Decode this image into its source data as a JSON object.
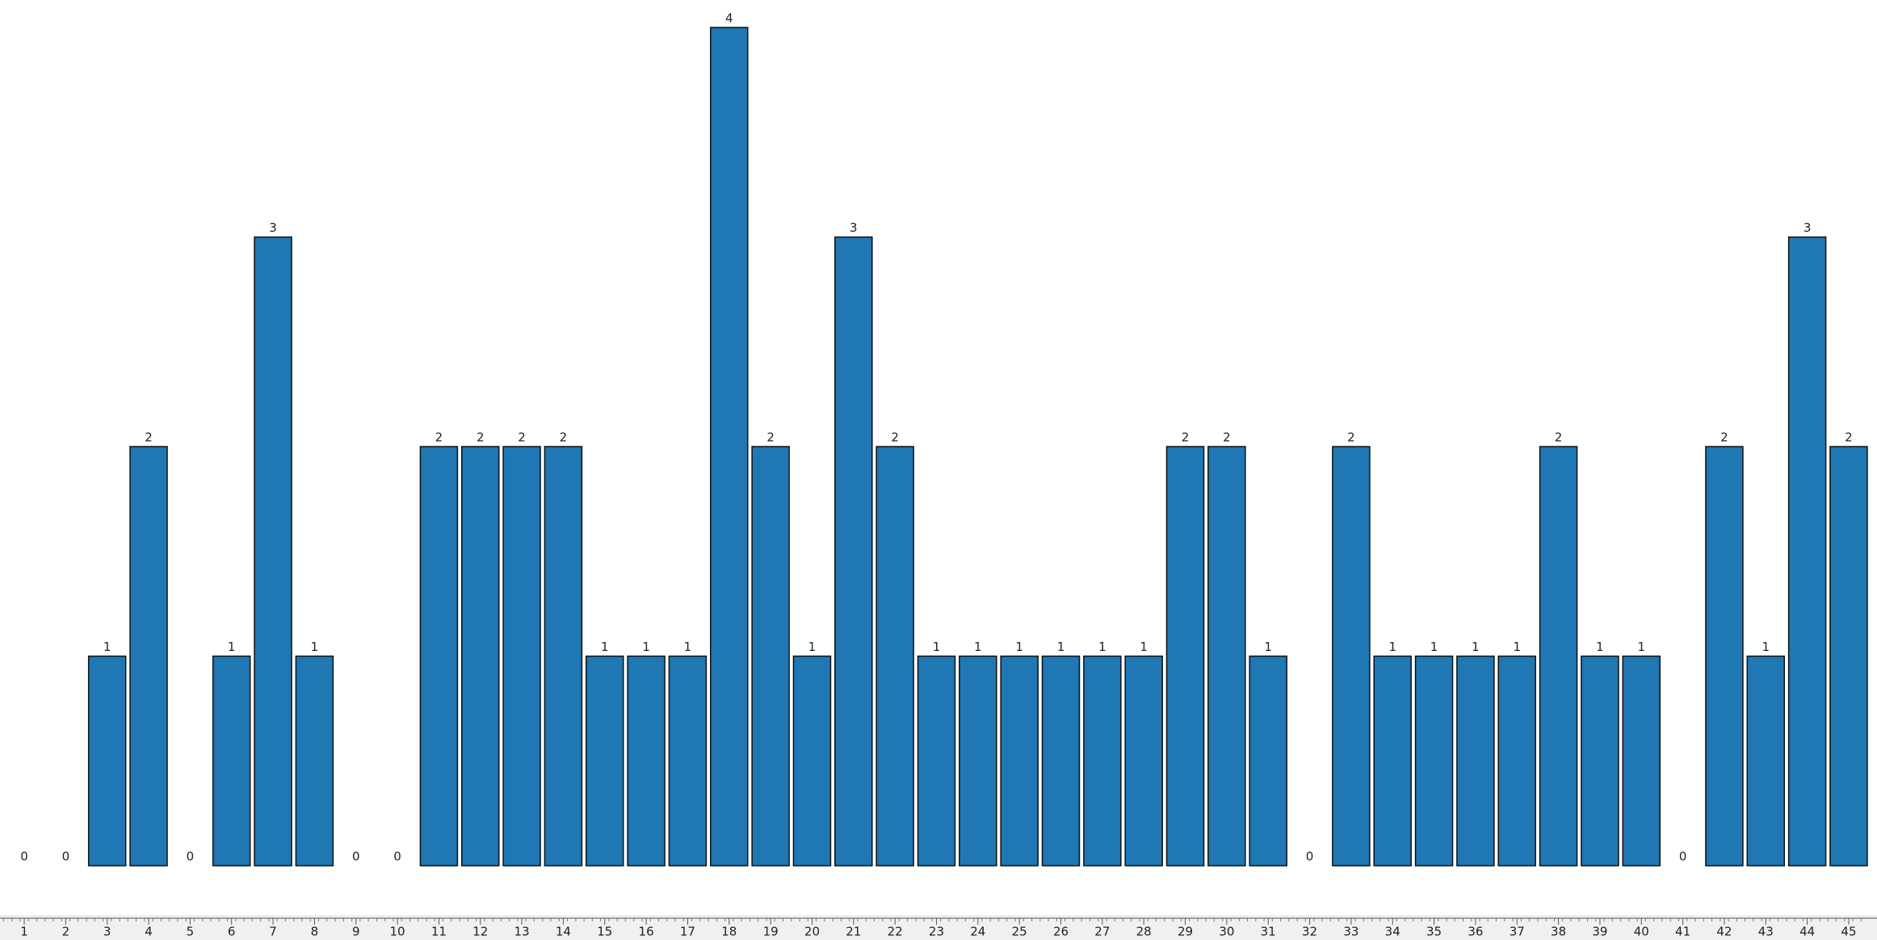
{
  "chart_data": {
    "type": "bar",
    "categories": [
      "1",
      "2",
      "3",
      "4",
      "5",
      "6",
      "7",
      "8",
      "9",
      "10",
      "11",
      "12",
      "13",
      "14",
      "15",
      "16",
      "17",
      "18",
      "19",
      "20",
      "21",
      "22",
      "23",
      "24",
      "25",
      "26",
      "27",
      "28",
      "29",
      "30",
      "31",
      "32",
      "33",
      "34",
      "35",
      "36",
      "37",
      "38",
      "39",
      "40",
      "41",
      "42",
      "43",
      "44",
      "45"
    ],
    "values": [
      0,
      0,
      1,
      2,
      0,
      1,
      3,
      1,
      0,
      0,
      2,
      2,
      2,
      2,
      1,
      1,
      1,
      4,
      2,
      1,
      3,
      2,
      1,
      1,
      1,
      1,
      1,
      1,
      2,
      2,
      1,
      0,
      2,
      1,
      1,
      1,
      1,
      2,
      1,
      1,
      0,
      2,
      1,
      3,
      2
    ],
    "color": "#1f77b4",
    "edge_color": "#111111",
    "ylim": [
      0,
      4
    ],
    "value_labels_shown": true
  }
}
